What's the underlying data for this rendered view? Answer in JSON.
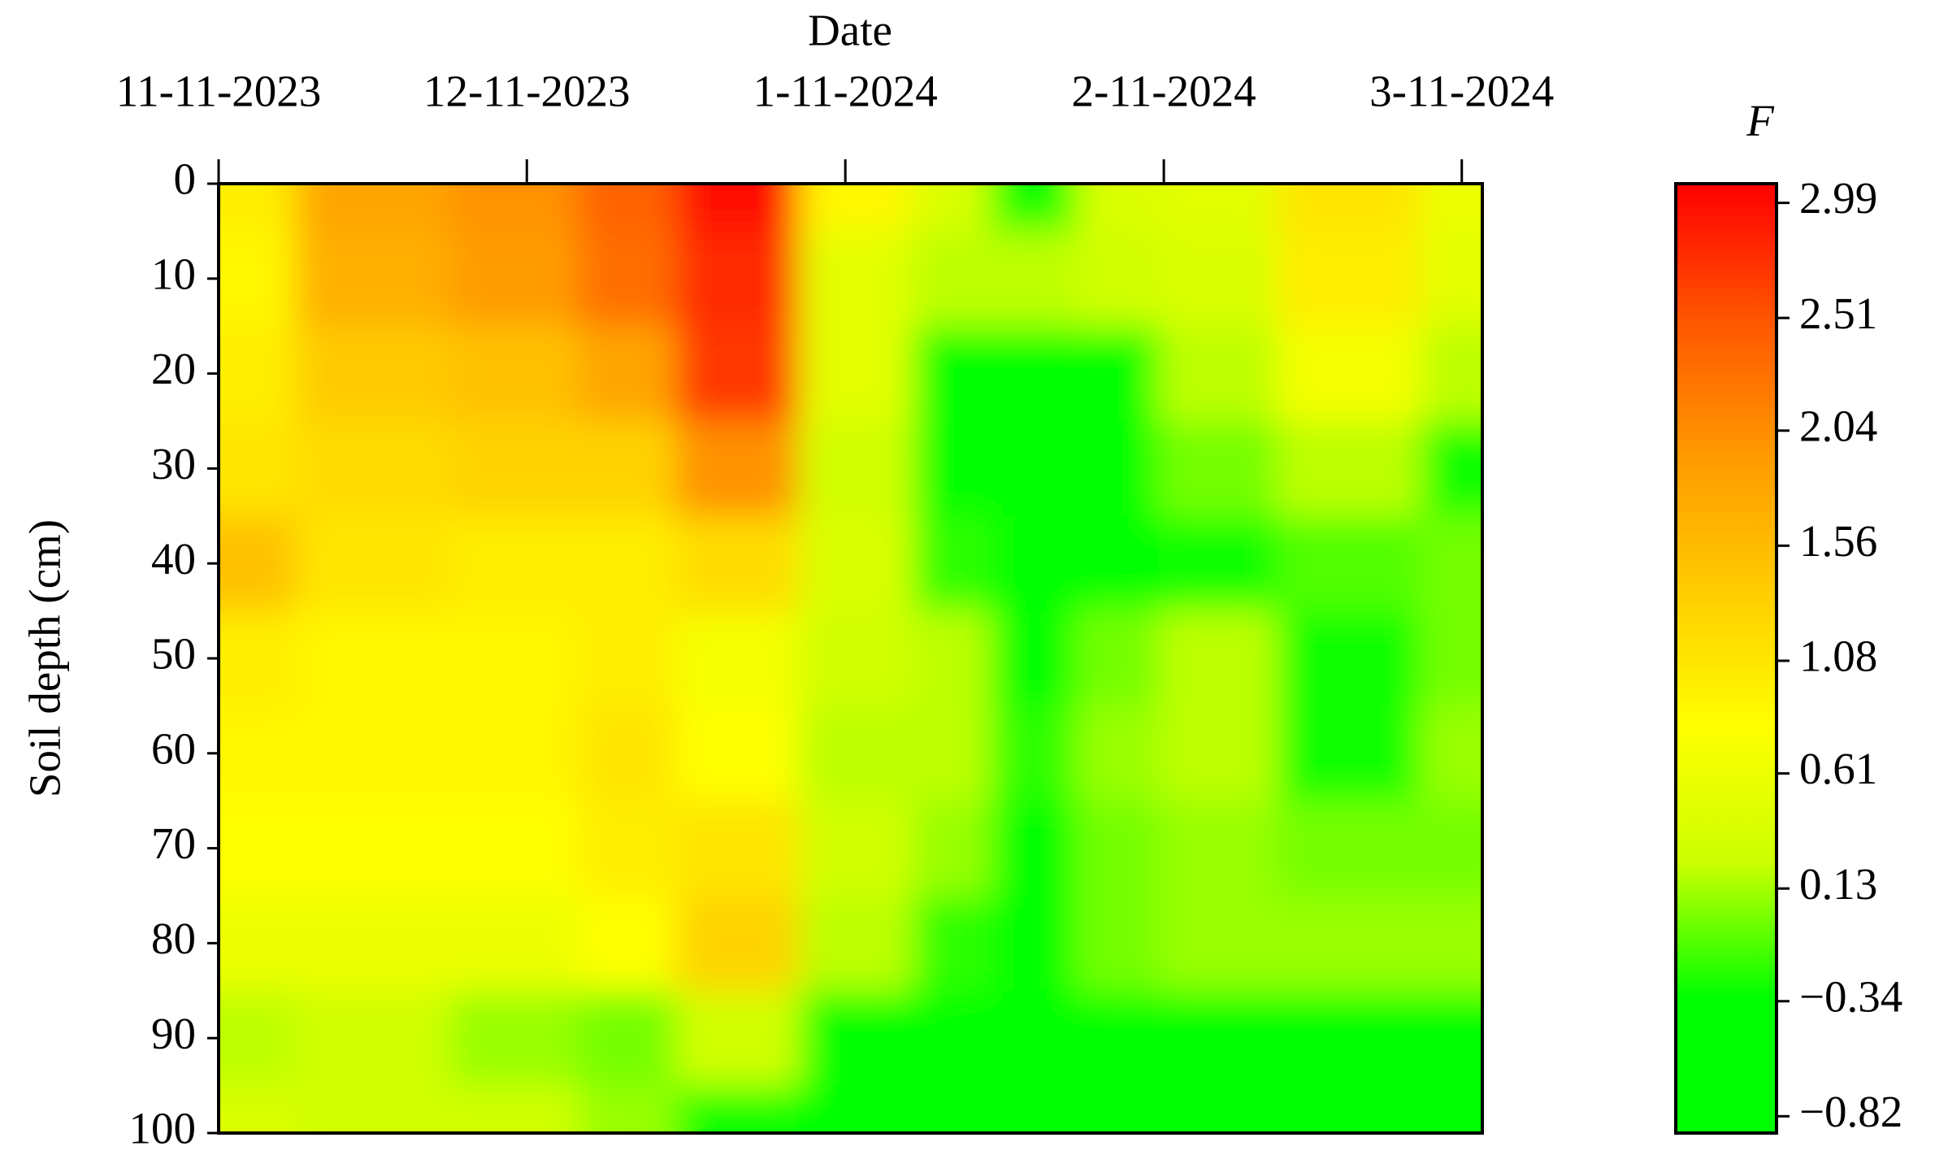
{
  "chart_data": {
    "type": "contour",
    "xlabel": "Date",
    "ylabel": "Soil depth (cm)",
    "x": [
      0,
      15,
      30,
      40,
      49,
      64,
      71,
      79,
      88,
      95,
      111,
      123
    ],
    "y": [
      0,
      10,
      20,
      30,
      40,
      50,
      60,
      70,
      80,
      90,
      100
    ],
    "z": [
      [
        1.0,
        1.8,
        2.0,
        2.4,
        3.0,
        0.9,
        0.4,
        -0.3,
        0.4,
        0.5,
        1.1,
        0.6
      ],
      [
        0.9,
        1.7,
        1.9,
        2.3,
        2.8,
        0.5,
        0.2,
        0.2,
        0.3,
        0.4,
        1.0,
        0.5
      ],
      [
        1.0,
        1.4,
        1.5,
        1.8,
        2.7,
        0.5,
        -0.5,
        -0.8,
        -0.8,
        0.2,
        0.7,
        0.2
      ],
      [
        1.1,
        1.2,
        1.3,
        1.3,
        2.0,
        0.3,
        -0.4,
        -0.8,
        -0.8,
        0.0,
        0.2,
        -0.3
      ],
      [
        1.5,
        1.1,
        1.0,
        1.0,
        1.2,
        0.4,
        -0.2,
        -0.8,
        -0.8,
        -0.3,
        -0.1,
        0.0
      ],
      [
        1.0,
        0.9,
        0.9,
        1.0,
        0.7,
        0.3,
        0.2,
        -0.6,
        0.0,
        0.2,
        -0.3,
        0.0
      ],
      [
        0.9,
        0.9,
        0.9,
        1.1,
        0.8,
        0.2,
        0.2,
        -0.2,
        0.1,
        0.2,
        -0.3,
        0.1
      ],
      [
        0.8,
        0.8,
        0.8,
        1.0,
        1.1,
        0.3,
        0.1,
        -0.5,
        0.0,
        0.1,
        0.0,
        0.0
      ],
      [
        0.6,
        0.6,
        0.6,
        0.8,
        1.3,
        0.2,
        -0.2,
        -0.8,
        0.0,
        0.1,
        0.1,
        0.1
      ],
      [
        0.2,
        0.3,
        0.1,
        0.0,
        0.3,
        -0.4,
        -0.4,
        -0.8,
        -0.7,
        -0.6,
        -0.4,
        -0.6
      ],
      [
        0.4,
        0.3,
        0.3,
        0.1,
        -0.3,
        -0.8,
        -0.6,
        -0.8,
        -0.8,
        -0.8,
        -0.8,
        -0.8
      ]
    ],
    "xlim": [
      0,
      123
    ],
    "xticks": [
      {
        "value": 0,
        "label": "11-11-2023"
      },
      {
        "value": 30,
        "label": "12-11-2023"
      },
      {
        "value": 61,
        "label": "1-11-2024"
      },
      {
        "value": 92,
        "label": "2-11-2024"
      },
      {
        "value": 121,
        "label": "3-11-2024"
      }
    ],
    "ylim": [
      0,
      100
    ],
    "y_reversed": true,
    "yticks": [
      0,
      10,
      20,
      30,
      40,
      50,
      60,
      70,
      80,
      90,
      100
    ],
    "colorbar": {
      "label": "F",
      "lim": [
        -0.89,
        3.07
      ],
      "colors": [
        "#00ff00",
        "#00ff00",
        "#ccff00",
        "#ffff00",
        "#ffcc00",
        "#ff9900",
        "#ff5500",
        "#ff0000"
      ],
      "ticks": [
        {
          "value": -0.82,
          "label": "−0.82"
        },
        {
          "value": -0.34,
          "label": "−0.34"
        },
        0.13,
        0.61,
        1.08,
        1.56,
        2.04,
        2.51,
        2.99
      ]
    }
  }
}
